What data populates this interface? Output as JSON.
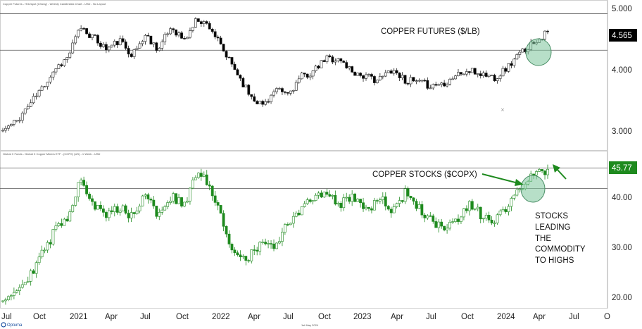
{
  "chart_data": [
    {
      "type": "candlestick",
      "title": "Copper Futures - HGZspot (Chicky) - Weekly Candlestick Chart - USD - No Layout",
      "annotation": "COPPER FUTURES ($/LB)",
      "last_price": "4.565",
      "yticks": [
        "5.000",
        "4.000",
        "3.000"
      ],
      "ylim": [
        2.6,
        5.05
      ],
      "horizontal_lines": [
        4.93,
        4.28
      ],
      "up_color": "#ffffff",
      "down_color": "#000000",
      "highlight_circle_color": "#7cc49a",
      "anchors": [
        2.85,
        3.0,
        3.3,
        3.6,
        3.95,
        4.15,
        4.7,
        4.5,
        4.3,
        4.45,
        4.2,
        4.55,
        4.3,
        4.7,
        4.45,
        4.85,
        4.7,
        4.25,
        3.9,
        3.5,
        3.3,
        3.55,
        3.5,
        3.8,
        3.9,
        4.15,
        4.1,
        3.9,
        3.8,
        3.75,
        3.95,
        3.75,
        3.7,
        3.65,
        3.7,
        3.85,
        3.9,
        3.85,
        3.8,
        4.0,
        4.25,
        4.45,
        4.6
      ]
    },
    {
      "type": "candlestick",
      "title": "Global X Funds - Global X Copper Miners ETF - (COPX) (US) - 1 Week - USD",
      "annotation": "COPPER STOCKS ($COPX)",
      "side_note": [
        "STOCKS",
        "LEADING",
        "THE",
        "COMMODITY",
        "TO HIGHS"
      ],
      "last_price": "45.77",
      "yticks": [
        "40.00",
        "30.00",
        "20.00"
      ],
      "ylim": [
        18,
        47.5
      ],
      "horizontal_lines": [
        45.7,
        41.6
      ],
      "up_color": "#ffffff",
      "down_color": "#1e8a1e",
      "highlight_circle_color": "#7cc49a",
      "anchors": [
        19.5,
        21.0,
        24.0,
        28.0,
        33.0,
        36.0,
        44.0,
        38.0,
        36.0,
        38.0,
        36.0,
        41.0,
        36.0,
        40.0,
        38.0,
        45.0,
        42.0,
        34.0,
        28.0,
        27.5,
        31.0,
        29.0,
        35.0,
        37.0,
        40.0,
        41.0,
        38.0,
        40.5,
        37.0,
        40.0,
        37.0,
        40.5,
        38.0,
        35.0,
        33.0,
        35.0,
        38.0,
        36.0,
        35.0,
        38.0,
        42.0,
        44.0,
        45.8
      ]
    }
  ],
  "xaxis": {
    "labels": [
      "Jul",
      "Oct",
      "2021",
      "Apr",
      "Jul",
      "Oct",
      "2022",
      "Apr",
      "Jul",
      "Oct",
      "2023",
      "Apr",
      "Jul",
      "Oct",
      "2024",
      "Apr",
      "Jul",
      "O"
    ]
  },
  "footer": {
    "date": "1st May 2024",
    "brand": "Optuma"
  }
}
